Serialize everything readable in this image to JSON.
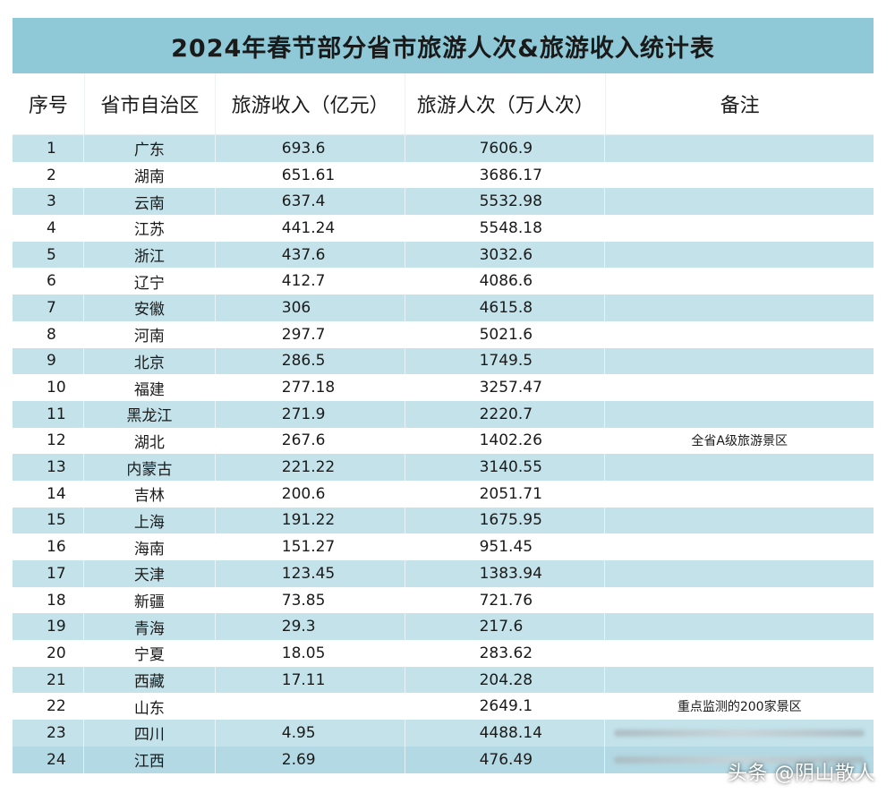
{
  "title": "2024年春节部分省市旅游人次&旅游收入统计表",
  "headers": {
    "index": "序号",
    "region": "省市自治区",
    "revenue": "旅游收入（亿元）",
    "visitors": "旅游人次（万人次）",
    "note": "备注"
  },
  "rows": [
    {
      "index": "1",
      "region": "广东",
      "revenue": "693.6",
      "visitors": "7606.9",
      "note": ""
    },
    {
      "index": "2",
      "region": "湖南",
      "revenue": "651.61",
      "visitors": "3686.17",
      "note": ""
    },
    {
      "index": "3",
      "region": "云南",
      "revenue": "637.4",
      "visitors": "5532.98",
      "note": ""
    },
    {
      "index": "4",
      "region": "江苏",
      "revenue": "441.24",
      "visitors": "5548.18",
      "note": ""
    },
    {
      "index": "5",
      "region": "浙江",
      "revenue": "437.6",
      "visitors": "3032.6",
      "note": ""
    },
    {
      "index": "6",
      "region": "辽宁",
      "revenue": "412.7",
      "visitors": "4086.6",
      "note": ""
    },
    {
      "index": "7",
      "region": "安徽",
      "revenue": "306",
      "visitors": "4615.8",
      "note": ""
    },
    {
      "index": "8",
      "region": "河南",
      "revenue": "297.7",
      "visitors": "5021.6",
      "note": ""
    },
    {
      "index": "9",
      "region": "北京",
      "revenue": "286.5",
      "visitors": "1749.5",
      "note": ""
    },
    {
      "index": "10",
      "region": "福建",
      "revenue": "277.18",
      "visitors": "3257.47",
      "note": ""
    },
    {
      "index": "11",
      "region": "黑龙江",
      "revenue": "271.9",
      "visitors": "2220.7",
      "note": ""
    },
    {
      "index": "12",
      "region": "湖北",
      "revenue": "267.6",
      "visitors": "1402.26",
      "note": "全省A级旅游景区"
    },
    {
      "index": "13",
      "region": "内蒙古",
      "revenue": "221.22",
      "visitors": "3140.55",
      "note": ""
    },
    {
      "index": "14",
      "region": "吉林",
      "revenue": "200.6",
      "visitors": "2051.71",
      "note": ""
    },
    {
      "index": "15",
      "region": "上海",
      "revenue": "191.22",
      "visitors": "1675.95",
      "note": ""
    },
    {
      "index": "16",
      "region": "海南",
      "revenue": "151.27",
      "visitors": "951.45",
      "note": ""
    },
    {
      "index": "17",
      "region": "天津",
      "revenue": "123.45",
      "visitors": "1383.94",
      "note": ""
    },
    {
      "index": "18",
      "region": "新疆",
      "revenue": "73.85",
      "visitors": "721.76",
      "note": ""
    },
    {
      "index": "19",
      "region": "青海",
      "revenue": "29.3",
      "visitors": "217.6",
      "note": ""
    },
    {
      "index": "20",
      "region": "宁夏",
      "revenue": "18.05",
      "visitors": "283.62",
      "note": ""
    },
    {
      "index": "21",
      "region": "西藏",
      "revenue": "17.11",
      "visitors": "204.28",
      "note": ""
    },
    {
      "index": "22",
      "region": "山东",
      "revenue": "",
      "visitors": "2649.1",
      "note": "重点监测的200家景区"
    },
    {
      "index": "23",
      "region": "四川",
      "revenue": "4.95",
      "visitors": "4488.14",
      "note": ""
    },
    {
      "index": "24",
      "region": "江西",
      "revenue": "2.69",
      "visitors": "476.49",
      "note": ""
    }
  ],
  "watermark": "头条 @阴山散人"
}
